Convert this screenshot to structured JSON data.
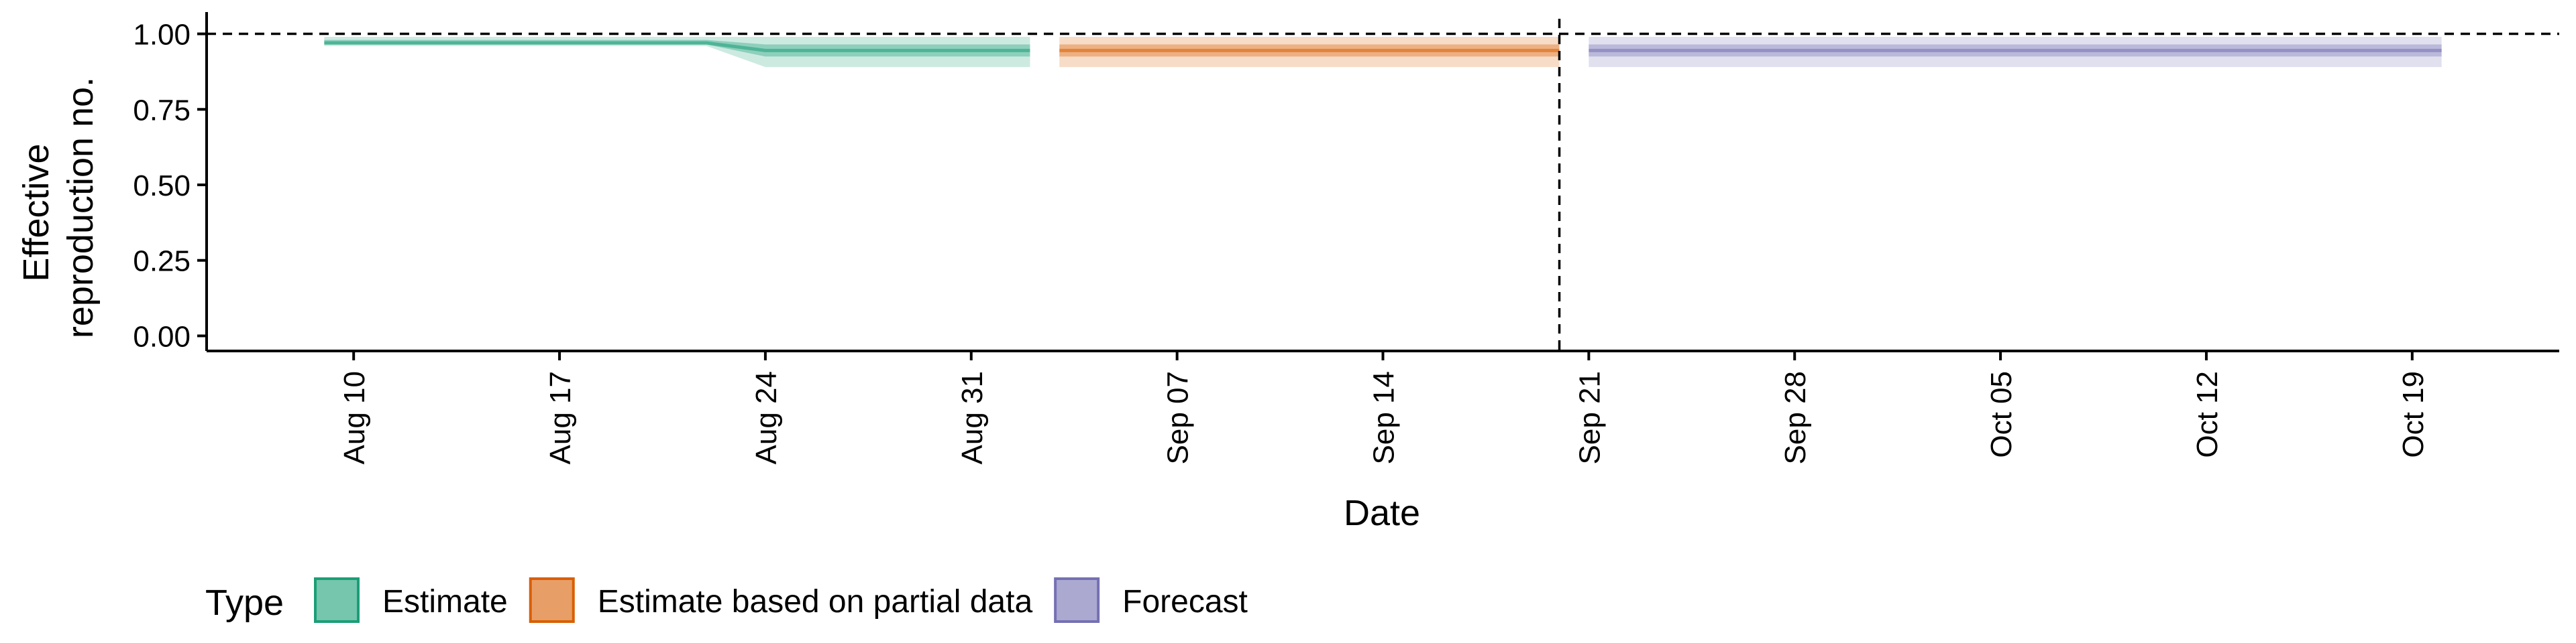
{
  "chart_data": {
    "type": "area",
    "xlabel": "Date",
    "ylabel_lines": [
      "Effective",
      "reproduction no."
    ],
    "ylim": [
      -0.05,
      1.05
    ],
    "yticks": [
      0.0,
      0.25,
      0.5,
      0.75,
      1.0
    ],
    "ytick_labels": [
      "0.00",
      "0.25",
      "0.50",
      "0.75",
      "1.00"
    ],
    "xlim": [
      "2020-08-05",
      "2020-10-24"
    ],
    "xticks": [
      "2020-08-10",
      "2020-08-17",
      "2020-08-24",
      "2020-08-31",
      "2020-09-07",
      "2020-09-14",
      "2020-09-21",
      "2020-09-28",
      "2020-10-05",
      "2020-10-12",
      "2020-10-19"
    ],
    "xtick_labels": [
      "Aug 10",
      "Aug 17",
      "Aug 24",
      "Aug 31",
      "Sep 07",
      "Sep 14",
      "Sep 21",
      "Sep 28",
      "Oct 05",
      "Oct 12",
      "Oct 19"
    ],
    "reference_hline": 1.0,
    "reference_vline": "2020-09-20",
    "legend": {
      "title": "Type",
      "position": "bottom-left",
      "items": [
        "Estimate",
        "Estimate based on partial data",
        "Forecast"
      ]
    },
    "colors": {
      "Estimate": "#1b9e77",
      "Estimate based on partial data": "#d95f02",
      "Forecast": "#7570b3"
    },
    "series": [
      {
        "name": "Estimate",
        "points": [
          {
            "date": "2020-08-09",
            "median": 0.97,
            "lower_50": 0.965,
            "upper_50": 0.98,
            "lower_90": 0.96,
            "upper_90": 0.99
          },
          {
            "date": "2020-08-22",
            "median": 0.97,
            "lower_50": 0.965,
            "upper_50": 0.98,
            "lower_90": 0.96,
            "upper_90": 0.99
          },
          {
            "date": "2020-08-24",
            "median": 0.945,
            "lower_50": 0.925,
            "upper_50": 0.965,
            "lower_90": 0.89,
            "upper_90": 0.99
          },
          {
            "date": "2020-09-02",
            "median": 0.945,
            "lower_50": 0.925,
            "upper_50": 0.965,
            "lower_90": 0.89,
            "upper_90": 0.99
          }
        ]
      },
      {
        "name": "Estimate based on partial data",
        "points": [
          {
            "date": "2020-09-03",
            "median": 0.945,
            "lower_50": 0.925,
            "upper_50": 0.965,
            "lower_90": 0.89,
            "upper_90": 0.99
          },
          {
            "date": "2020-09-20",
            "median": 0.945,
            "lower_50": 0.925,
            "upper_50": 0.965,
            "lower_90": 0.89,
            "upper_90": 0.99
          }
        ]
      },
      {
        "name": "Forecast",
        "points": [
          {
            "date": "2020-09-21",
            "median": 0.945,
            "lower_50": 0.925,
            "upper_50": 0.965,
            "lower_90": 0.89,
            "upper_90": 0.99
          },
          {
            "date": "2020-10-20",
            "median": 0.945,
            "lower_50": 0.925,
            "upper_50": 0.965,
            "lower_90": 0.89,
            "upper_90": 0.99
          }
        ]
      }
    ]
  }
}
